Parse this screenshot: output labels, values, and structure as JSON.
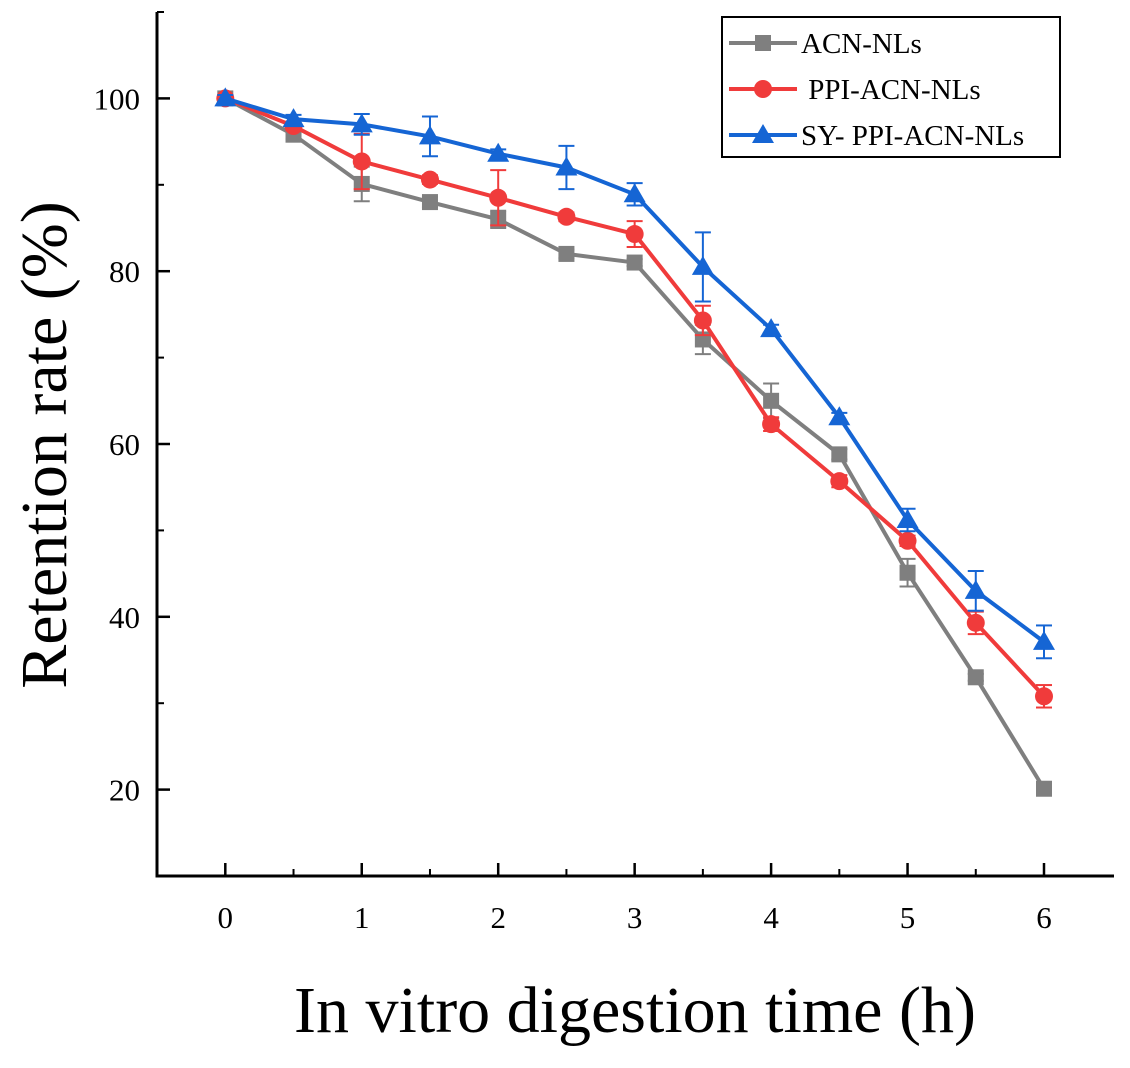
{
  "chart_data": {
    "type": "line",
    "title": "",
    "xlabel": "In vitro digestion time (h)",
    "ylabel": "Retention rate (%)",
    "xlim": [
      -0.5,
      6.5
    ],
    "ylim": [
      10,
      110
    ],
    "xticks": [
      "0",
      "1",
      "2",
      "3",
      "4",
      "5",
      "6"
    ],
    "yticks": [
      "20",
      "40",
      "60",
      "80",
      "100"
    ],
    "x": [
      0,
      0.5,
      1,
      1.5,
      2,
      2.5,
      3,
      3.5,
      4,
      4.5,
      5,
      5.5,
      6
    ],
    "grid": false,
    "legend_position": "top-right",
    "series": [
      {
        "name": "ACN-NLs",
        "color": "#7f7f7f",
        "marker": "square",
        "values": [
          100,
          95.8,
          90.1,
          88.0,
          86.0,
          82.0,
          81.0,
          72.1,
          65.0,
          58.8,
          45.1,
          33.0,
          20.1
        ],
        "errors": [
          0.4,
          0.5,
          2.0,
          0.6,
          1.0,
          0.5,
          0.4,
          1.7,
          2.0,
          0.6,
          1.6,
          0.4,
          0.4
        ]
      },
      {
        "name": " PPI-ACN-NLs",
        "color": "#f03b3b",
        "marker": "circle",
        "values": [
          100,
          96.8,
          92.7,
          90.6,
          88.5,
          86.3,
          84.3,
          74.3,
          62.3,
          55.7,
          48.8,
          39.3,
          30.8
        ],
        "errors": [
          0.4,
          0.5,
          3.2,
          0.5,
          3.2,
          0.5,
          1.5,
          1.7,
          0.8,
          0.7,
          0.6,
          1.3,
          1.3
        ]
      },
      {
        "name": "SY- PPI-ACN-NLs",
        "color": "#1565d4",
        "marker": "triangle",
        "values": [
          100,
          97.6,
          97.0,
          95.6,
          93.6,
          92.0,
          88.9,
          80.5,
          73.3,
          63.1,
          51.2,
          43.0,
          37.1
        ],
        "errors": [
          0.4,
          0.5,
          1.2,
          2.3,
          0.5,
          2.5,
          1.3,
          4.0,
          0.5,
          0.5,
          1.3,
          2.3,
          1.9
        ]
      }
    ]
  }
}
